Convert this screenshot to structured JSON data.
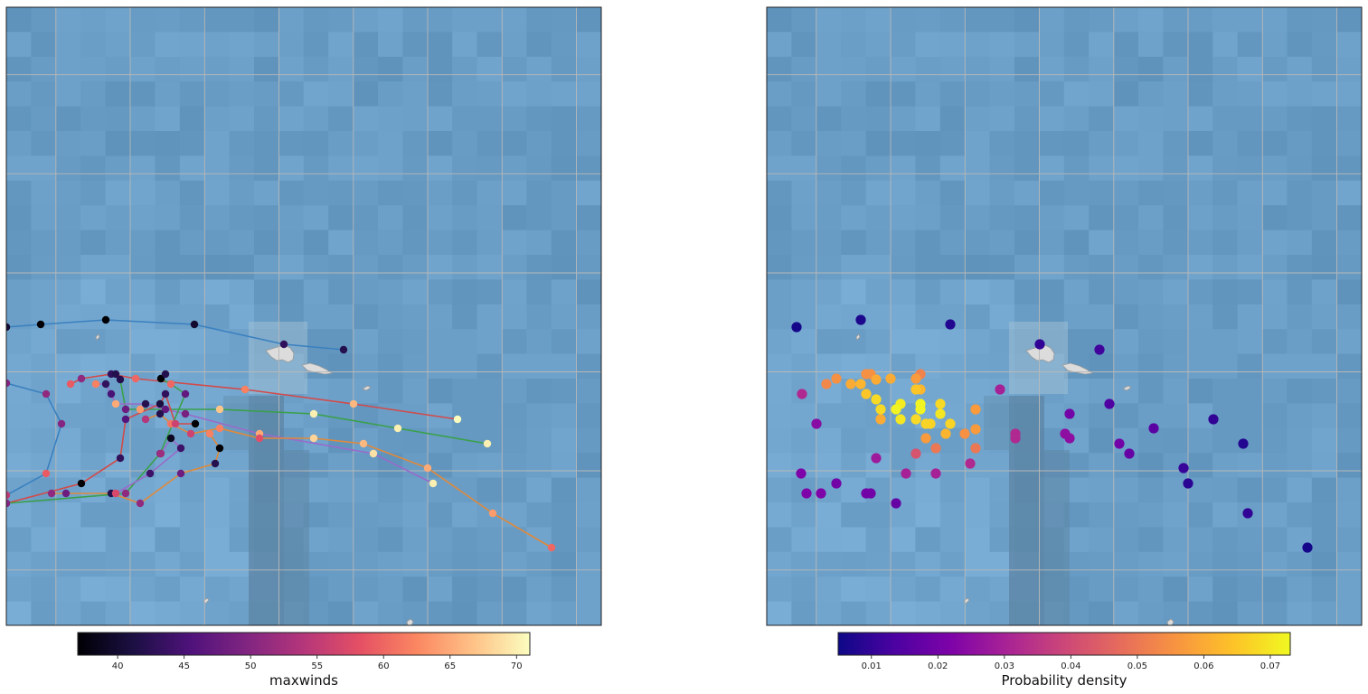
{
  "panels": [
    {
      "id": "left",
      "colormap": "magma",
      "colorbar": {
        "label": "maxwinds",
        "min": 37,
        "max": 71,
        "ticks": [
          40,
          45,
          50,
          55,
          60,
          65,
          70
        ]
      },
      "tracks": [
        {
          "color": "#3a80c0",
          "points": [
            [
              0,
              354
            ],
            [
              38,
              351
            ],
            [
              110,
              346
            ],
            [
              208,
              351
            ],
            [
              307,
              373
            ],
            [
              373,
              379
            ]
          ],
          "values": [
            40,
            37,
            37,
            40,
            43,
            42
          ]
        },
        {
          "color": "#3a80c0",
          "points": [
            [
              0,
              416
            ],
            [
              44,
              428
            ],
            [
              61,
              461
            ],
            [
              44,
              516
            ],
            [
              0,
              540
            ]
          ],
          "values": [
            50,
            51,
            50,
            59,
            55
          ]
        },
        {
          "color": "#d24a4a",
          "points": [
            [
              71,
              417
            ],
            [
              83,
              411
            ],
            [
              116,
              406
            ],
            [
              143,
              411
            ],
            [
              264,
              423
            ],
            [
              384,
              439
            ],
            [
              499,
              456
            ]
          ],
          "values": [
            59,
            51,
            43,
            60,
            62,
            66,
            71
          ]
        },
        {
          "color": "#3aa04a",
          "points": [
            [
              121,
              406
            ],
            [
              126,
              412
            ],
            [
              132,
              445
            ],
            [
              148,
              445
            ],
            [
              236,
              445
            ],
            [
              340,
              450
            ],
            [
              433,
              466
            ],
            [
              532,
              483
            ]
          ],
          "values": [
            42,
            42,
            48,
            64,
            67,
            70,
            70,
            70
          ]
        },
        {
          "color": "#9a6acb",
          "points": [
            [
              99,
              417
            ],
            [
              110,
              417
            ],
            [
              116,
              428
            ],
            [
              121,
              439
            ],
            [
              154,
              439
            ],
            [
              176,
              445
            ],
            [
              198,
              450
            ],
            [
              280,
              472
            ],
            [
              406,
              494
            ],
            [
              472,
              527
            ]
          ],
          "values": [
            62,
            43,
            45,
            65,
            42,
            47,
            49,
            65,
            69,
            70
          ]
        },
        {
          "color": "#e0893b",
          "points": [
            [
              154,
              456
            ],
            [
              170,
              450
            ],
            [
              182,
              461
            ],
            [
              204,
              472
            ],
            [
              236,
              466
            ],
            [
              280,
              477
            ],
            [
              340,
              477
            ],
            [
              395,
              483
            ],
            [
              466,
              510
            ],
            [
              538,
              560
            ],
            [
              603,
              598
            ]
          ],
          "values": [
            54,
            42,
            61,
            56,
            62,
            58,
            68,
            66,
            65,
            64,
            60
          ]
        },
        {
          "color": "#d24a4a",
          "points": [
            [
              0,
              549
            ],
            [
              83,
              527
            ],
            [
              126,
              499
            ],
            [
              132,
              456
            ],
            [
              170,
              439
            ],
            [
              176,
              428
            ],
            [
              187,
              461
            ],
            [
              209,
              461
            ]
          ],
          "values": [
            50,
            37,
            43,
            46,
            41,
            43,
            56,
            37
          ]
        },
        {
          "color": "#3aa04a",
          "points": [
            [
              0,
              549
            ],
            [
              132,
              538
            ],
            [
              170,
              494
            ],
            [
              198,
              428
            ],
            [
              182,
              417
            ],
            [
              171,
              411
            ],
            [
              176,
              406
            ]
          ],
          "values": [
            50,
            51,
            50,
            47,
            60,
            37,
            42
          ]
        },
        {
          "color": "#e0893b",
          "points": [
            [
              50,
              538
            ],
            [
              66,
              538
            ],
            [
              116,
              538
            ],
            [
              148,
              549
            ],
            [
              193,
              516
            ],
            [
              231,
              505
            ],
            [
              236,
              488
            ],
            [
              225,
              472
            ]
          ],
          "values": [
            51,
            48,
            42,
            51,
            48,
            42,
            37,
            62
          ]
        },
        {
          "color": "#9a6acb",
          "points": [
            [
              121,
              538
            ],
            [
              159,
              516
            ],
            [
              193,
              488
            ],
            [
              182,
              477
            ],
            [
              171,
              494
            ]
          ],
          "values": [
            57,
            44,
            44,
            39,
            52
          ]
        }
      ]
    },
    {
      "id": "right",
      "colormap": "plasma",
      "colorbar": {
        "label": "Probability density",
        "min": 0.005,
        "max": 0.073,
        "ticks": [
          0.01,
          0.02,
          0.03,
          0.04,
          0.05,
          0.06,
          0.07
        ]
      },
      "scatter": [
        [
          0,
          354,
          0.006
        ],
        [
          71,
          346,
          0.007
        ],
        [
          170,
          351,
          0.008
        ],
        [
          269,
          373,
          0.01
        ],
        [
          335,
          379,
          0.012
        ],
        [
          6,
          428,
          0.032
        ],
        [
          22,
          461,
          0.024
        ],
        [
          5,
          516,
          0.022
        ],
        [
          11,
          538,
          0.022
        ],
        [
          27,
          538,
          0.022
        ],
        [
          44,
          527,
          0.02
        ],
        [
          77,
          538,
          0.02
        ],
        [
          82,
          538,
          0.02
        ],
        [
          110,
          549,
          0.018
        ],
        [
          33,
          417,
          0.053
        ],
        [
          44,
          411,
          0.055
        ],
        [
          60,
          417,
          0.06
        ],
        [
          71,
          417,
          0.062
        ],
        [
          77,
          406,
          0.055
        ],
        [
          82,
          406,
          0.055
        ],
        [
          88,
          412,
          0.06
        ],
        [
          104,
          411,
          0.06
        ],
        [
          132,
          411,
          0.057
        ],
        [
          137,
          406,
          0.052
        ],
        [
          77,
          428,
          0.065
        ],
        [
          88,
          434,
          0.068
        ],
        [
          93,
          445,
          0.068
        ],
        [
          93,
          456,
          0.06
        ],
        [
          110,
          445,
          0.072
        ],
        [
          115,
          439,
          0.071
        ],
        [
          115,
          456,
          0.07
        ],
        [
          132,
          456,
          0.068
        ],
        [
          137,
          439,
          0.072
        ],
        [
          137,
          445,
          0.072
        ],
        [
          132,
          423,
          0.065
        ],
        [
          137,
          423,
          0.062
        ],
        [
          143,
          461,
          0.067
        ],
        [
          148,
          461,
          0.067
        ],
        [
          159,
          439,
          0.068
        ],
        [
          159,
          450,
          0.07
        ],
        [
          170,
          461,
          0.067
        ],
        [
          165,
          472,
          0.062
        ],
        [
          143,
          477,
          0.057
        ],
        [
          154,
          488,
          0.05
        ],
        [
          132,
          494,
          0.042
        ],
        [
          121,
          516,
          0.03
        ],
        [
          154,
          516,
          0.03
        ],
        [
          88,
          499,
          0.028
        ],
        [
          186,
          472,
          0.055
        ],
        [
          198,
          467,
          0.057
        ],
        [
          198,
          488,
          0.05
        ],
        [
          198,
          445,
          0.057
        ],
        [
          192,
          505,
          0.032
        ],
        [
          225,
          423,
          0.03
        ],
        [
          242,
          472,
          0.032
        ],
        [
          242,
          477,
          0.032
        ],
        [
          297,
          472,
          0.025
        ],
        [
          302,
          477,
          0.025
        ],
        [
          302,
          450,
          0.02
        ],
        [
          346,
          439,
          0.014
        ],
        [
          357,
          483,
          0.02
        ],
        [
          368,
          494,
          0.018
        ],
        [
          395,
          466,
          0.016
        ],
        [
          461,
          456,
          0.01
        ],
        [
          428,
          510,
          0.011
        ],
        [
          433,
          527,
          0.009
        ],
        [
          494,
          483,
          0.008
        ],
        [
          499,
          560,
          0.01
        ],
        [
          565,
          598,
          0.006
        ]
      ]
    }
  ]
}
